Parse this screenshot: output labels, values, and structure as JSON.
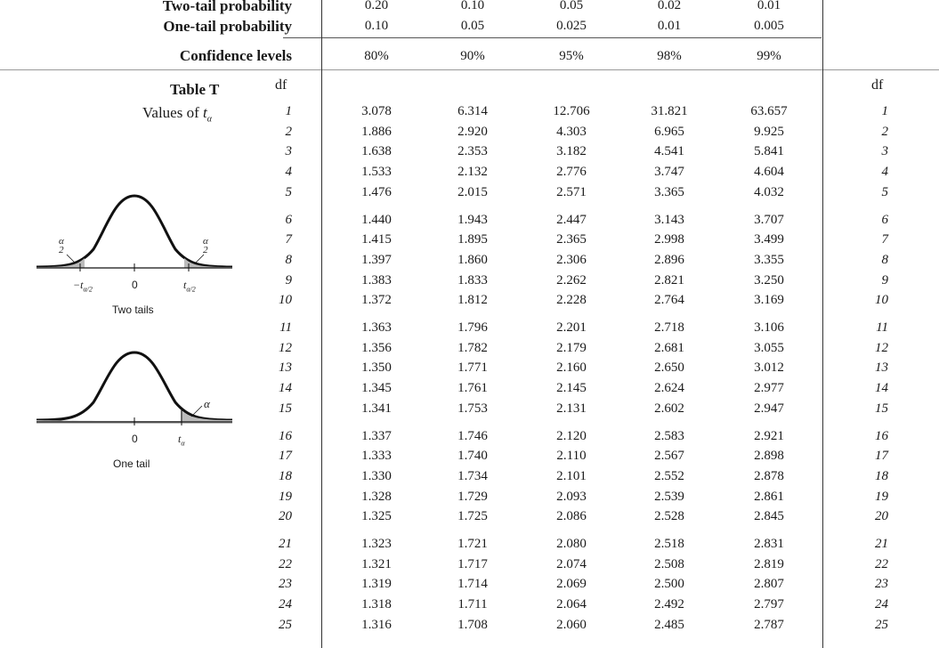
{
  "header": {
    "two_tail_label": "Two-tail probability",
    "one_tail_label": "One-tail probability",
    "confidence_label": "Confidence levels",
    "two_tail": [
      "0.20",
      "0.10",
      "0.05",
      "0.02",
      "0.01"
    ],
    "one_tail": [
      "0.10",
      "0.05",
      "0.025",
      "0.01",
      "0.005"
    ],
    "confidence": [
      "80%",
      "90%",
      "95%",
      "98%",
      "99%"
    ]
  },
  "table": {
    "title": "Table T",
    "subtitle_prefix": "Values of ",
    "subtitle_var": "t",
    "subtitle_sub": "α",
    "df_label": "df",
    "df_label_right": "df",
    "rows": [
      {
        "df": "1",
        "values": [
          "3.078",
          "6.314",
          "12.706",
          "31.821",
          "63.657"
        ]
      },
      {
        "df": "2",
        "values": [
          "1.886",
          "2.920",
          "4.303",
          "6.965",
          "9.925"
        ]
      },
      {
        "df": "3",
        "values": [
          "1.638",
          "2.353",
          "3.182",
          "4.541",
          "5.841"
        ]
      },
      {
        "df": "4",
        "values": [
          "1.533",
          "2.132",
          "2.776",
          "3.747",
          "4.604"
        ]
      },
      {
        "df": "5",
        "values": [
          "1.476",
          "2.015",
          "2.571",
          "3.365",
          "4.032"
        ]
      },
      {
        "df": "6",
        "values": [
          "1.440",
          "1.943",
          "2.447",
          "3.143",
          "3.707"
        ]
      },
      {
        "df": "7",
        "values": [
          "1.415",
          "1.895",
          "2.365",
          "2.998",
          "3.499"
        ]
      },
      {
        "df": "8",
        "values": [
          "1.397",
          "1.860",
          "2.306",
          "2.896",
          "3.355"
        ]
      },
      {
        "df": "9",
        "values": [
          "1.383",
          "1.833",
          "2.262",
          "2.821",
          "3.250"
        ]
      },
      {
        "df": "10",
        "values": [
          "1.372",
          "1.812",
          "2.228",
          "2.764",
          "3.169"
        ]
      },
      {
        "df": "11",
        "values": [
          "1.363",
          "1.796",
          "2.201",
          "2.718",
          "3.106"
        ]
      },
      {
        "df": "12",
        "values": [
          "1.356",
          "1.782",
          "2.179",
          "2.681",
          "3.055"
        ]
      },
      {
        "df": "13",
        "values": [
          "1.350",
          "1.771",
          "2.160",
          "2.650",
          "3.012"
        ]
      },
      {
        "df": "14",
        "values": [
          "1.345",
          "1.761",
          "2.145",
          "2.624",
          "2.977"
        ]
      },
      {
        "df": "15",
        "values": [
          "1.341",
          "1.753",
          "2.131",
          "2.602",
          "2.947"
        ]
      },
      {
        "df": "16",
        "values": [
          "1.337",
          "1.746",
          "2.120",
          "2.583",
          "2.921"
        ]
      },
      {
        "df": "17",
        "values": [
          "1.333",
          "1.740",
          "2.110",
          "2.567",
          "2.898"
        ]
      },
      {
        "df": "18",
        "values": [
          "1.330",
          "1.734",
          "2.101",
          "2.552",
          "2.878"
        ]
      },
      {
        "df": "19",
        "values": [
          "1.328",
          "1.729",
          "2.093",
          "2.539",
          "2.861"
        ]
      },
      {
        "df": "20",
        "values": [
          "1.325",
          "1.725",
          "2.086",
          "2.528",
          "2.845"
        ]
      },
      {
        "df": "21",
        "values": [
          "1.323",
          "1.721",
          "2.080",
          "2.518",
          "2.831"
        ]
      },
      {
        "df": "22",
        "values": [
          "1.321",
          "1.717",
          "2.074",
          "2.508",
          "2.819"
        ]
      },
      {
        "df": "23",
        "values": [
          "1.319",
          "1.714",
          "2.069",
          "2.500",
          "2.807"
        ]
      },
      {
        "df": "24",
        "values": [
          "1.318",
          "1.711",
          "2.064",
          "2.492",
          "2.797"
        ]
      },
      {
        "df": "25",
        "values": [
          "1.316",
          "1.708",
          "2.060",
          "2.485",
          "2.787"
        ]
      }
    ]
  },
  "figures": {
    "two_tails_caption": "Two tails",
    "one_tail_caption": "One tail",
    "alpha": "α",
    "alpha_num": "α",
    "alpha_den": "2",
    "zero": "0",
    "neg_t_half": "−t",
    "pos_t_half": "t",
    "t_half_sub": "α/2",
    "t_alpha": "t",
    "t_alpha_sub": "α"
  }
}
